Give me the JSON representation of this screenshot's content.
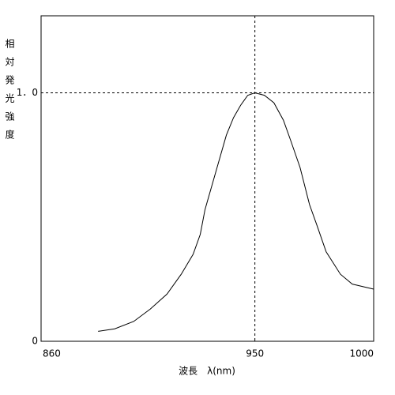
{
  "chart_data": {
    "type": "line",
    "xlabel": "波長　λ(nm)",
    "ylabel": "相対発光強度",
    "x": [
      884,
      891,
      899,
      906,
      913,
      919,
      924,
      927,
      929,
      932,
      935,
      938,
      941,
      944,
      947,
      950,
      954,
      958,
      962,
      965,
      969,
      973,
      976,
      980,
      986,
      991,
      1000
    ],
    "series": [
      {
        "color": "#000000",
        "values": [
          0.04,
          0.05,
          0.08,
          0.13,
          0.19,
          0.27,
          0.35,
          0.43,
          0.53,
          0.63,
          0.73,
          0.83,
          0.9,
          0.95,
          0.99,
          1.0,
          0.99,
          0.96,
          0.89,
          0.81,
          0.7,
          0.55,
          0.47,
          0.36,
          0.27,
          0.23,
          0.21
        ]
      }
    ],
    "xlim": [
      860,
      1000
    ],
    "xticks": [
      860,
      950,
      1000
    ],
    "ylim": [
      0,
      1.31
    ],
    "yticks": [
      0,
      {
        "value": 1,
        "label": "1．0"
      }
    ],
    "ref_x": 950,
    "ref_y": 1
  }
}
